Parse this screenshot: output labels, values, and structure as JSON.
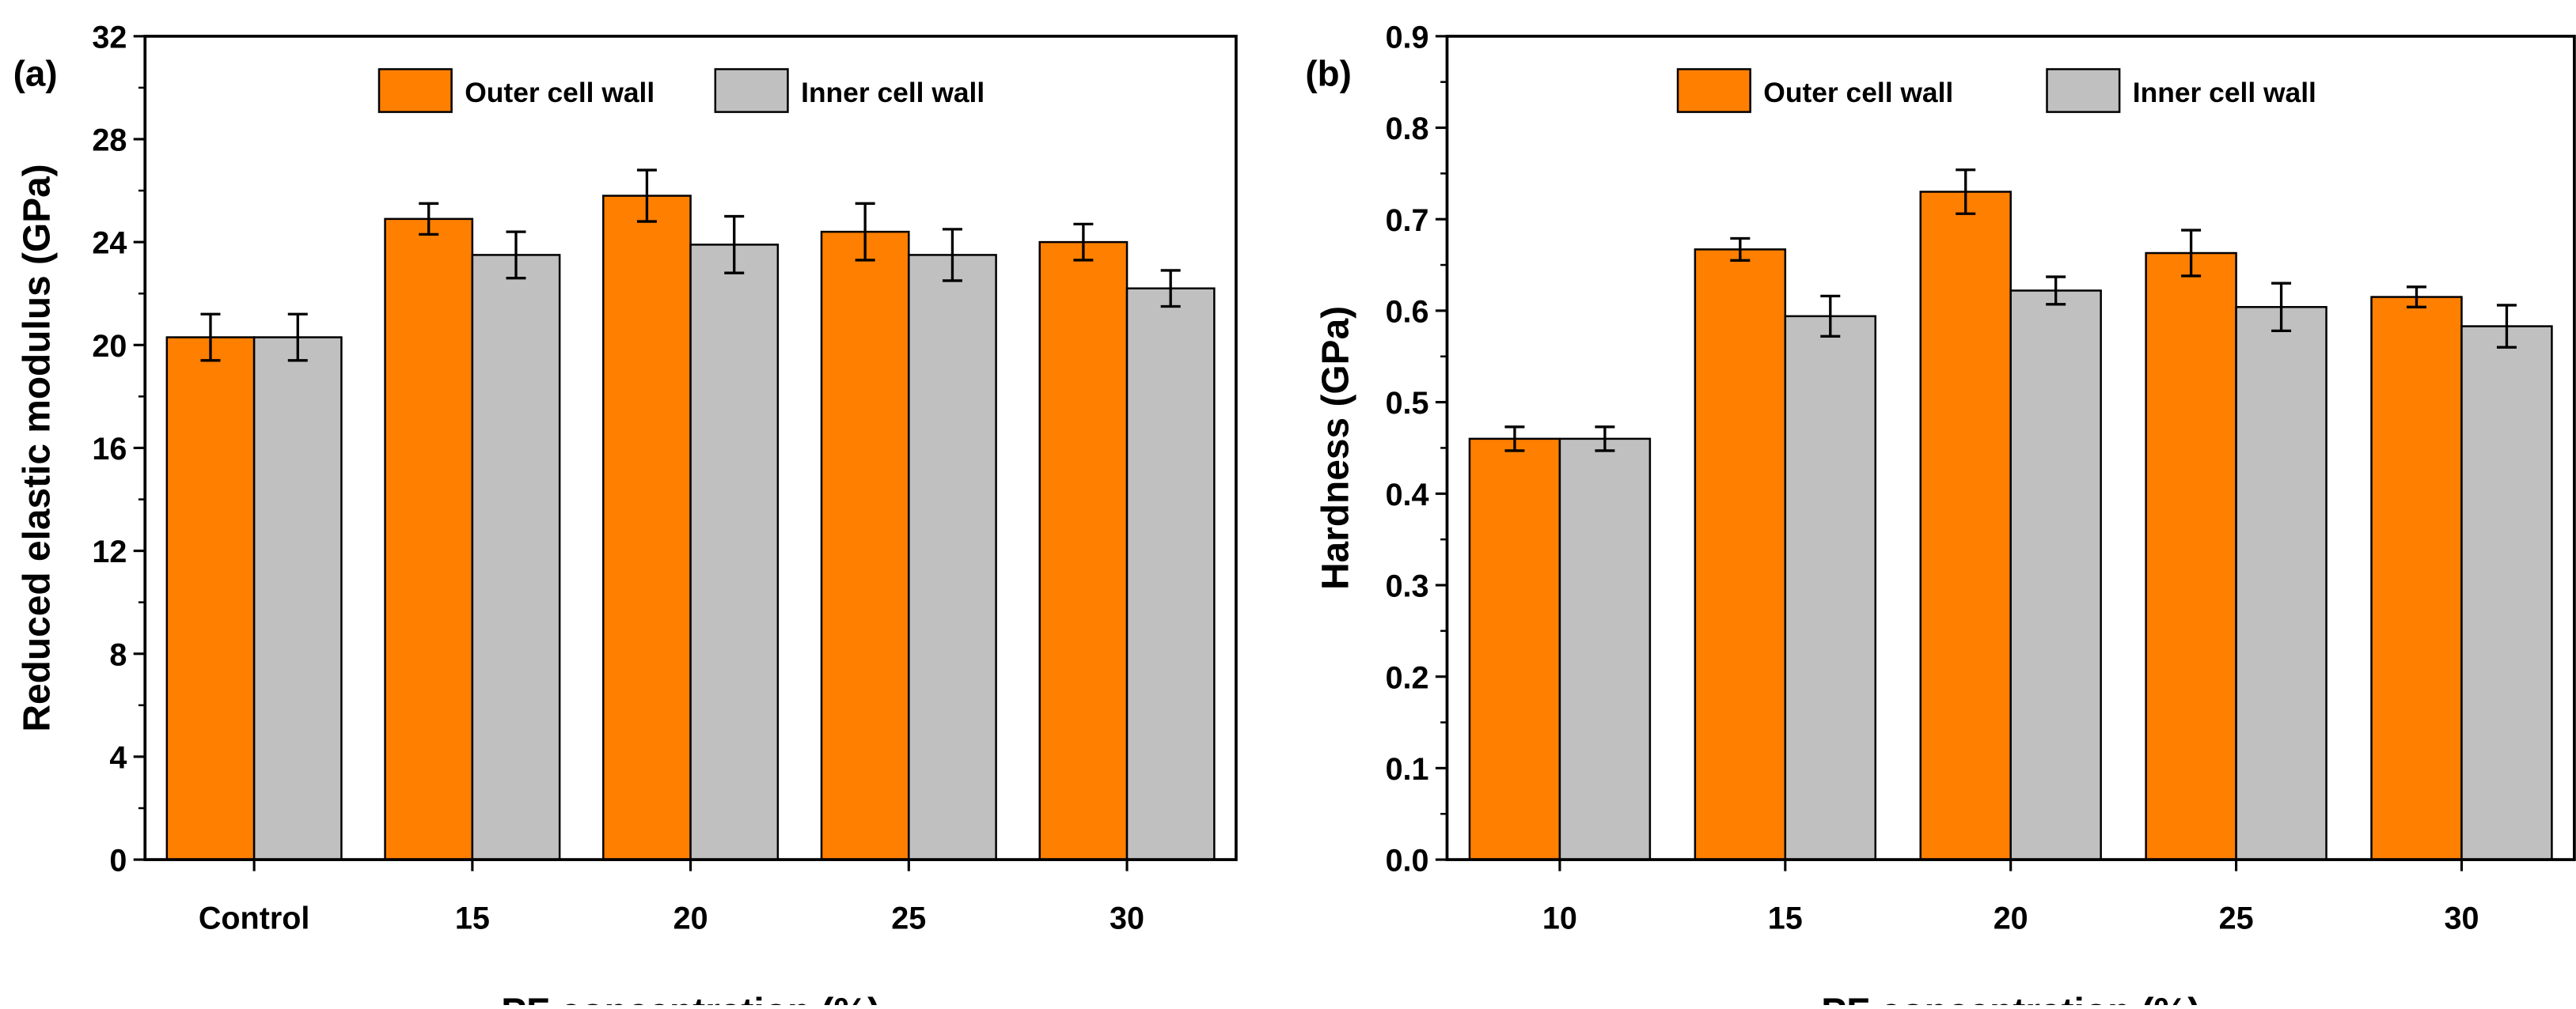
{
  "colors": {
    "outer": "#FF7F00",
    "inner": "#C0C0C0",
    "axis": "#000000",
    "background": "#FFFFFF"
  },
  "chart_data": [
    {
      "type": "bar",
      "panel_label": "(a)",
      "categories": [
        "Control",
        "15",
        "20",
        "25",
        "30"
      ],
      "series": [
        {
          "name": "Outer cell wall",
          "values": [
            20.3,
            24.9,
            25.8,
            24.4,
            24.0
          ],
          "errors": [
            0.9,
            0.6,
            1.0,
            1.1,
            0.7
          ]
        },
        {
          "name": "Inner cell wall",
          "values": [
            20.3,
            23.5,
            23.9,
            23.5,
            22.2
          ],
          "errors": [
            0.9,
            0.9,
            1.1,
            1.0,
            0.7
          ]
        }
      ],
      "xlabel": "PF concentration (%)",
      "ylabel": "Reduced elastic modulus (GPa)",
      "ylim": [
        0,
        32
      ],
      "yticks": [
        0,
        4,
        8,
        12,
        16,
        20,
        24,
        28,
        32
      ],
      "ytick_labels": [
        "0",
        "4",
        "8",
        "12",
        "16",
        "20",
        "24",
        "28",
        "32"
      ],
      "legend_position": "top-center",
      "grid": false
    },
    {
      "type": "bar",
      "panel_label": "(b)",
      "categories": [
        "10",
        "15",
        "20",
        "25",
        "30"
      ],
      "series": [
        {
          "name": "Outer cell wall",
          "values": [
            0.46,
            0.667,
            0.73,
            0.663,
            0.615
          ],
          "errors": [
            0.013,
            0.012,
            0.024,
            0.025,
            0.011
          ]
        },
        {
          "name": "Inner cell wall",
          "values": [
            0.46,
            0.594,
            0.622,
            0.604,
            0.583
          ],
          "errors": [
            0.013,
            0.022,
            0.015,
            0.026,
            0.023
          ]
        }
      ],
      "xlabel": "PF concentration (%)",
      "ylabel": "Hardness (GPa)",
      "ylim": [
        0,
        0.9
      ],
      "yticks": [
        0,
        0.1,
        0.2,
        0.3,
        0.4,
        0.5,
        0.6,
        0.7,
        0.8,
        0.9
      ],
      "ytick_labels": [
        "0.0",
        "0.1",
        "0.2",
        "0.3",
        "0.4",
        "0.5",
        "0.6",
        "0.7",
        "0.8",
        "0.9"
      ],
      "legend_position": "top-center",
      "grid": false
    }
  ]
}
